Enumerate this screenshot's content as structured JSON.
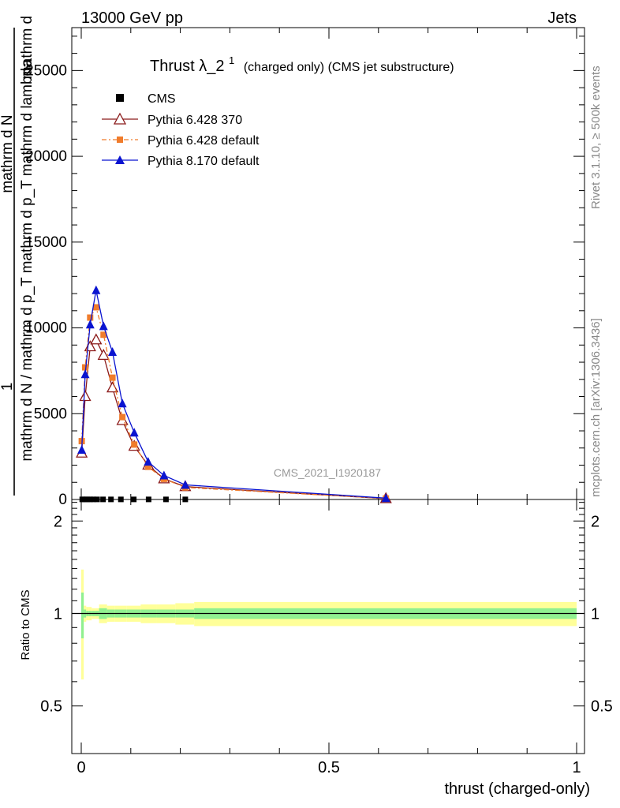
{
  "header": {
    "left": "13000 GeV pp",
    "right": "Jets"
  },
  "side_text": {
    "rivet": "Rivet 3.1.10, ≥ 500k events",
    "mcplots": "mcplots.cern.ch [arXiv:1306.3436]"
  },
  "watermark": "CMS_2021_I1920187",
  "colors": {
    "cms": "#000000",
    "py6_370": "#8b1a1a",
    "py6_default": "#f07c2c",
    "py8": "#0a14d0",
    "band_inner": "#90f090",
    "band_outer": "#ffff99"
  },
  "chart_data": [
    {
      "type": "line",
      "title_main": "Thrust λ_2",
      "title_sup": "1",
      "title_suffix": "(charged only) (CMS jet substructure)",
      "ylabel_lines": [
        "1",
        "mathrm d N / mathrm d p_T mathrm d p_T mathrm d lambda",
        "mathrm d N"
      ],
      "ylabel_top": "mathrm d",
      "xlim": [
        0,
        1
      ],
      "ylim": [
        0,
        27500
      ],
      "yticks": [
        0,
        5000,
        10000,
        15000,
        20000,
        25000
      ],
      "ytick_labels": [
        "0",
        "5000",
        "10000",
        "15000",
        "20000",
        "25000"
      ],
      "legend": [
        "CMS",
        "Pythia 6.428 370",
        "Pythia 6.428 default",
        "Pythia 8.170 default"
      ],
      "series": [
        {
          "name": "CMS",
          "x": [
            0.002,
            0.007,
            0.012,
            0.018,
            0.024,
            0.032,
            0.044,
            0.06,
            0.08,
            0.106,
            0.136,
            0.171,
            0.21
          ],
          "y": [
            5,
            5,
            5,
            5,
            5,
            5,
            5,
            5,
            5,
            5,
            5,
            5,
            5
          ]
        },
        {
          "name": "Pythia 6.428 370",
          "x": [
            0.001,
            0.008,
            0.018,
            0.03,
            0.045,
            0.063,
            0.083,
            0.107,
            0.135,
            0.167,
            0.21,
            0.615
          ],
          "y": [
            2700,
            6000,
            8900,
            9300,
            8400,
            6500,
            4600,
            3100,
            2000,
            1200,
            750,
            50
          ]
        },
        {
          "name": "Pythia 6.428 default",
          "x": [
            0.001,
            0.008,
            0.018,
            0.03,
            0.045,
            0.063,
            0.083,
            0.107,
            0.135,
            0.167,
            0.21,
            0.615
          ],
          "y": [
            3400,
            7700,
            10600,
            11200,
            9600,
            7100,
            4800,
            3200,
            1900,
            1200,
            700,
            60
          ]
        },
        {
          "name": "Pythia 8.170 default",
          "x": [
            0.001,
            0.008,
            0.018,
            0.03,
            0.045,
            0.063,
            0.083,
            0.107,
            0.135,
            0.167,
            0.21,
            0.615
          ],
          "y": [
            2900,
            7300,
            10200,
            12200,
            10100,
            8600,
            5600,
            3900,
            2200,
            1400,
            850,
            80
          ]
        }
      ]
    },
    {
      "type": "area",
      "ylabel": "Ratio to CMS",
      "xlabel": "thrust (charged-only)",
      "xlim": [
        0,
        1
      ],
      "ylim": [
        0.35,
        2.35
      ],
      "xticks": [
        0,
        0.5,
        1
      ],
      "xtick_labels": [
        "0",
        "0.5",
        "1"
      ],
      "yticks": [
        0.5,
        1,
        2
      ],
      "ytick_labels": [
        "0.5",
        "1",
        "2"
      ],
      "bins": [
        0,
        0.005,
        0.01,
        0.015,
        0.021,
        0.028,
        0.036,
        0.052,
        0.068,
        0.092,
        0.12,
        0.152,
        0.19,
        0.228,
        1.0
      ],
      "inner_lo": [
        0.83,
        0.97,
        0.98,
        0.98,
        0.98,
        0.98,
        0.96,
        0.97,
        0.97,
        0.97,
        0.97,
        0.97,
        0.97,
        0.96
      ],
      "inner_hi": [
        1.17,
        1.03,
        1.02,
        1.02,
        1.02,
        1.02,
        1.04,
        1.03,
        1.03,
        1.03,
        1.03,
        1.03,
        1.03,
        1.04
      ],
      "outer_lo": [
        0.61,
        0.94,
        0.95,
        0.95,
        0.96,
        0.96,
        0.93,
        0.94,
        0.94,
        0.94,
        0.93,
        0.93,
        0.92,
        0.91
      ],
      "outer_hi": [
        1.39,
        1.06,
        1.05,
        1.05,
        1.04,
        1.04,
        1.07,
        1.06,
        1.06,
        1.06,
        1.07,
        1.07,
        1.08,
        1.09
      ]
    }
  ]
}
